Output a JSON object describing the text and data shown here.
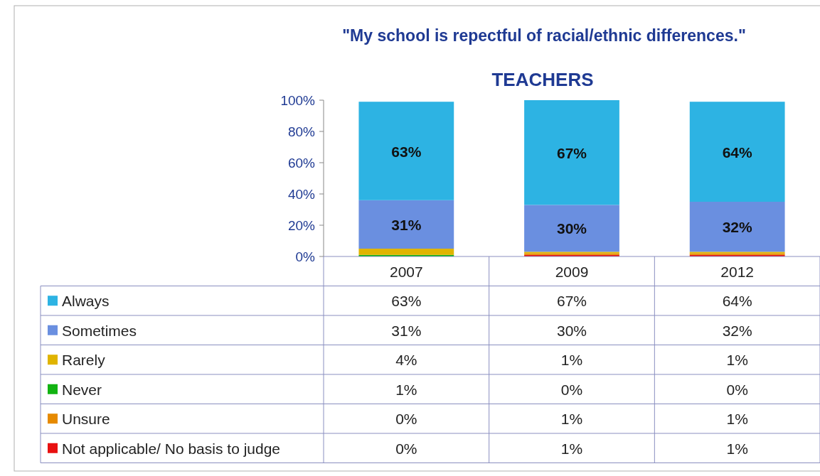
{
  "chart_data": {
    "type": "bar",
    "title": "\"My school is repectful of racial/ethnic differences.\"",
    "subtitle": "TEACHERS",
    "categories": [
      "2007",
      "2009",
      "2012"
    ],
    "stacked": true,
    "legend": "bottom",
    "grid": false,
    "ylim": [
      0,
      100
    ],
    "yticks": [
      {
        "value": 0,
        "label": "0%"
      },
      {
        "value": 20,
        "label": "20%"
      },
      {
        "value": 40,
        "label": "40%"
      },
      {
        "value": 60,
        "label": "60%"
      },
      {
        "value": 80,
        "label": "80%"
      },
      {
        "value": 100,
        "label": "100%"
      }
    ],
    "series": [
      {
        "name": "Not applicable/ No basis to judge",
        "color": "#e81010",
        "values": [
          0,
          1,
          1
        ],
        "value_labels": [
          "0%",
          "1%",
          "1%"
        ]
      },
      {
        "name": "Unsure",
        "color": "#e68a00",
        "values": [
          0,
          1,
          1
        ],
        "value_labels": [
          "0%",
          "1%",
          "1%"
        ]
      },
      {
        "name": "Never",
        "color": "#12b312",
        "values": [
          1,
          0,
          0
        ],
        "value_labels": [
          "1%",
          "0%",
          "0%"
        ]
      },
      {
        "name": "Rarely",
        "color": "#e0b400",
        "values": [
          4,
          1,
          1
        ],
        "value_labels": [
          "4%",
          "1%",
          "1%"
        ]
      },
      {
        "name": "Sometimes",
        "color": "#6a8fe0",
        "values": [
          31,
          30,
          32
        ],
        "value_labels": [
          "31%",
          "30%",
          "32%"
        ]
      },
      {
        "name": "Always",
        "color": "#2db3e3",
        "values": [
          63,
          67,
          64
        ],
        "value_labels": [
          "63%",
          "67%",
          "64%"
        ]
      }
    ]
  }
}
